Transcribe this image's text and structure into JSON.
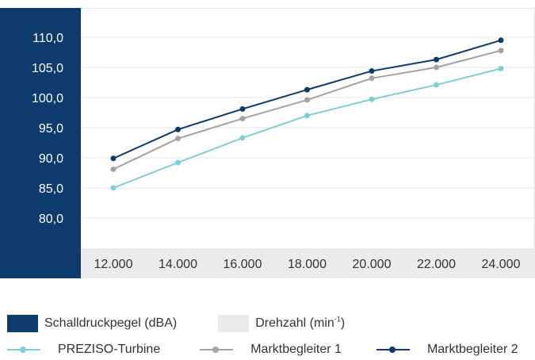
{
  "chart_data": {
    "type": "line",
    "title": "",
    "xlabel": "",
    "ylabel": "",
    "categories": [
      "12.000",
      "14.000",
      "16.000",
      "18.000",
      "20.000",
      "22.000",
      "24.000"
    ],
    "x": [
      12000,
      14000,
      16000,
      18000,
      20000,
      22000,
      24000
    ],
    "yticks": [
      "80,0",
      "85,0",
      "90,0",
      "95,0",
      "100,0",
      "105,0",
      "110,0"
    ],
    "ylim": [
      80,
      110
    ],
    "grid": true,
    "legend_position": "bottom",
    "series": [
      {
        "name": "PREZISO-Turbine",
        "color": "#7fcfd3",
        "values": [
          85.0,
          89.2,
          93.3,
          97.0,
          99.7,
          102.1,
          104.8
        ]
      },
      {
        "name": "Marktbegleiter 1",
        "color": "#a3a3a3",
        "values": [
          88.1,
          93.2,
          96.5,
          99.6,
          103.2,
          105.0,
          107.8
        ]
      },
      {
        "name": "Marktbegleiter 2",
        "color": "#0d3b6e",
        "values": [
          89.9,
          94.7,
          98.1,
          101.3,
          104.4,
          106.3,
          109.5
        ]
      }
    ]
  },
  "legend": {
    "axis_y": {
      "label": "Schalldruckpegel (dBA)",
      "color": "#0d3b6e"
    },
    "axis_x": {
      "label_main": "Drehzahl (min",
      "label_sup": "-1",
      "label_end": ")",
      "color": "#ebebeb"
    }
  }
}
